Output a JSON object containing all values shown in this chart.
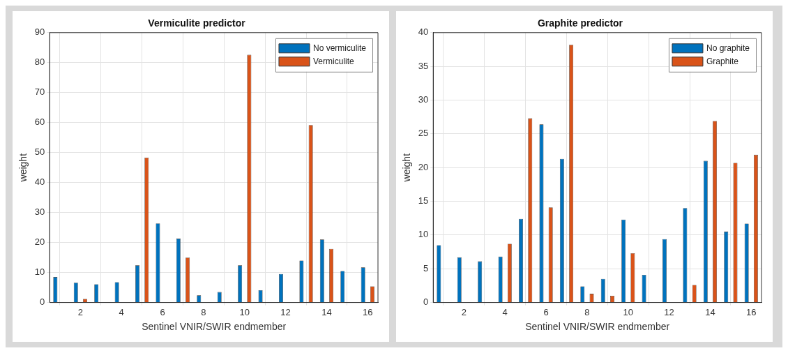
{
  "chart_data": [
    {
      "type": "bar",
      "title": "Vermiculite predictor",
      "xlabel": "Sentinel VNIR/SWIR endmember",
      "ylabel": "weight",
      "x": [
        1,
        2,
        3,
        4,
        5,
        6,
        7,
        8,
        9,
        10,
        11,
        12,
        13,
        14,
        15,
        16
      ],
      "xlim": [
        0.5,
        16.5
      ],
      "xticks": [
        2,
        4,
        6,
        8,
        10,
        12,
        14,
        16
      ],
      "ylim": [
        0,
        90
      ],
      "yticks": [
        0,
        10,
        20,
        30,
        40,
        50,
        60,
        70,
        80,
        90
      ],
      "grid": true,
      "legend": "top right",
      "series": [
        {
          "name": "No vermiculite",
          "color": "#0072bd",
          "values": [
            8.5,
            6.6,
            6.1,
            6.8,
            12.4,
            26.4,
            21.3,
            2.4,
            3.5,
            12.4,
            4.1,
            9.5,
            14.0,
            21.0,
            10.5,
            11.7
          ]
        },
        {
          "name": "Vermiculite",
          "color": "#d95319",
          "values": [
            0,
            1.2,
            0,
            0,
            48.3,
            0,
            15.0,
            0,
            0,
            82.6,
            0,
            0,
            59.2,
            17.9,
            0,
            5.4
          ]
        }
      ]
    },
    {
      "type": "bar",
      "title": "Graphite predictor",
      "xlabel": "Sentinel VNIR/SWIR endmember",
      "ylabel": "weight",
      "x": [
        1,
        2,
        3,
        4,
        5,
        6,
        7,
        8,
        9,
        10,
        11,
        12,
        13,
        14,
        15,
        16
      ],
      "xlim": [
        0.5,
        16.5
      ],
      "xticks": [
        2,
        4,
        6,
        8,
        10,
        12,
        14,
        16
      ],
      "ylim": [
        0,
        40
      ],
      "yticks": [
        0,
        5,
        10,
        15,
        20,
        25,
        30,
        35,
        40
      ],
      "grid": true,
      "legend": "top right",
      "series": [
        {
          "name": "No graphite",
          "color": "#0072bd",
          "values": [
            8.5,
            6.7,
            6.1,
            6.8,
            12.4,
            26.4,
            21.3,
            2.4,
            3.5,
            12.3,
            4.1,
            9.4,
            14.0,
            21.0,
            10.5,
            11.7
          ]
        },
        {
          "name": "Graphite",
          "color": "#d95319",
          "values": [
            0,
            0,
            0,
            8.7,
            27.3,
            14.1,
            38.2,
            1.3,
            1.0,
            7.3,
            0,
            0,
            2.6,
            26.9,
            20.7,
            21.9
          ]
        }
      ]
    }
  ]
}
